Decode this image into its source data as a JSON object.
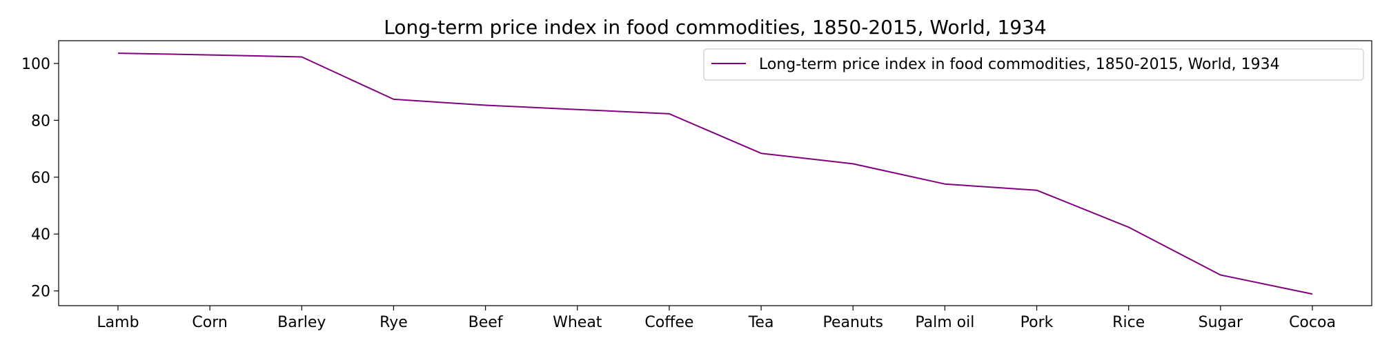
{
  "chart_data": {
    "type": "line",
    "title": "Long-term price index in food commodities, 1850-2015, World, 1934",
    "xlabel": "",
    "ylabel": "",
    "categories": [
      "Lamb",
      "Corn",
      "Barley",
      "Rye",
      "Beef",
      "Wheat",
      "Coffee",
      "Tea",
      "Peanuts",
      "Palm oil",
      "Pork",
      "Rice",
      "Sugar",
      "Cocoa"
    ],
    "series": [
      {
        "name": "Long-term price index in food commodities, 1850-2015, World, 1934",
        "color": "#800080",
        "values": [
          103.6,
          103.0,
          102.3,
          87.4,
          85.3,
          83.8,
          82.3,
          68.4,
          64.7,
          57.6,
          55.4,
          42.4,
          25.6,
          18.9
        ]
      }
    ],
    "ylim": [
      14.8,
      108.0
    ],
    "yticks": [
      20,
      40,
      60,
      80,
      100
    ],
    "grid": false,
    "legend_position": "top-right"
  }
}
